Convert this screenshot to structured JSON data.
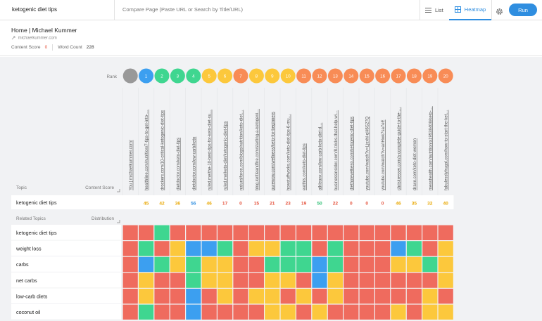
{
  "toolbar": {
    "query": "ketogenic diet tips",
    "compare_placeholder": "Compare Page (Paste URL or Search by Title/URL)",
    "list_label": "List",
    "heatmap_label": "Heatmap",
    "run_label": "Run"
  },
  "page_info": {
    "title": "Home | Michael Kummer",
    "url": "michaelkummer.com",
    "content_score_label": "Content Score",
    "content_score_value": "0",
    "word_count_label": "Word Count",
    "word_count_value": "228"
  },
  "grid": {
    "rank_label": "Rank",
    "topic_header": "Topic",
    "content_score_header": "Content Score",
    "main_topic": "ketogenic diet tips",
    "related_header": "Related Topics",
    "distribution_header": "Distribution",
    "colors": {
      "red": "#ef6b5e",
      "green": "#3fd690",
      "yellow": "#fcc83c",
      "blue": "#3c9ff0",
      "grey": "#999999"
    },
    "columns": [
      {
        "rank": "",
        "rank_color": "grey",
        "url": "You | michaelkummer.com/",
        "score": "",
        "score_color": ""
      },
      {
        "rank": "1",
        "rank_color": "blue",
        "url": "healthline.com/nutrition/7-tips-to-get-into-…",
        "score": "45",
        "score_color": "yellow"
      },
      {
        "rank": "2",
        "rank_color": "green",
        "url": "drockers.com/10-critical-ketogenic-diet-tips",
        "score": "42",
        "score_color": "yellow"
      },
      {
        "rank": "3",
        "rank_color": "green",
        "url": "dietdoctor.com/keto-diet-tips",
        "score": "36",
        "score_color": "yellow"
      },
      {
        "rank": "4",
        "rank_color": "green",
        "url": "dietdoctor.com/low-carb/keto",
        "score": "56",
        "score_color": "blue"
      },
      {
        "rank": "5",
        "rank_color": "yellow",
        "url": "ruled.me/the-10-best-tips-for-keto-diet-su…",
        "score": "46",
        "score_color": "yellow"
      },
      {
        "rank": "6",
        "rank_color": "yellow",
        "url": "ruled.me/keto-diet/ketogenic-diet-tips",
        "score": "17",
        "score_color": "red"
      },
      {
        "rank": "7",
        "rank_color": "orange",
        "url": "naturalforce.com/blogs/nutrition/keto-diet…",
        "score": "0",
        "score_color": "red"
      },
      {
        "rank": "8",
        "rank_color": "yellow",
        "url": "blog.kettleandfire.com/starting-a-ketogeni…",
        "score": "15",
        "score_color": "red"
      },
      {
        "rank": "9",
        "rank_color": "yellow",
        "url": "purewow.com/wellness/keto-for-beginners",
        "score": "21",
        "score_color": "red"
      },
      {
        "rank": "10",
        "rank_color": "yellow",
        "url": "howstuffworks.com/keto-diet-tips-6-mu…",
        "score": "23",
        "score_color": "red"
      },
      {
        "rank": "11",
        "rank_color": "orange",
        "url": "eatthis.com/keto-diet-tips",
        "score": "19",
        "score_color": "red"
      },
      {
        "rank": "12",
        "rank_color": "orange",
        "url": "athleanx.com/low-carb-keto-diet-d…",
        "score": "50",
        "score_color": "green"
      },
      {
        "rank": "13",
        "rank_color": "orange",
        "url": "businessinsider.com/8-tricks-that-help-wi…",
        "score": "22",
        "score_color": "red"
      },
      {
        "rank": "14",
        "rank_color": "orange",
        "url": "diethotevelkeso.com/ketogenic-diet-tips",
        "score": "0",
        "score_color": "red"
      },
      {
        "rank": "15",
        "rank_color": "orange",
        "url": "youtube.com/watch?v=Ljsxhl-qH6S2?Q",
        "score": "0",
        "score_color": "red"
      },
      {
        "rank": "16",
        "rank_color": "orange",
        "url": "youtube.com/watch?v=a/rHwk7sa7eE",
        "score": "0",
        "score_color": "red"
      },
      {
        "rank": "17",
        "rank_color": "orange",
        "url": "chriskresser.com/a-complete-guide-to-the-…",
        "score": "46",
        "score_color": "yellow"
      },
      {
        "rank": "18",
        "rank_color": "orange",
        "url": "draxe.com/keto-diet-women",
        "score": "35",
        "score_color": "yellow"
      },
      {
        "rank": "19",
        "rank_color": "orange",
        "url": "menshealth.com/nutrition/a19538408/keto-…",
        "score": "32",
        "score_color": "yellow"
      },
      {
        "rank": "20",
        "rank_color": "orange",
        "url": "fabulesslyfrugal.com/how-to-start-the-ket…",
        "score": "40",
        "score_color": "yellow"
      }
    ],
    "rows": [
      {
        "topic": "ketogenic diet tips",
        "cells": [
          "R",
          "R",
          "G",
          "R",
          "R",
          "R",
          "R",
          "R",
          "R",
          "R",
          "R",
          "R",
          "R",
          "R",
          "R",
          "R",
          "R",
          "R",
          "R",
          "R",
          "R"
        ]
      },
      {
        "topic": "weight loss",
        "cells": [
          "R",
          "G",
          "R",
          "Y",
          "B",
          "B",
          "G",
          "R",
          "Y",
          "Y",
          "G",
          "G",
          "R",
          "G",
          "R",
          "R",
          "R",
          "B",
          "G",
          "R",
          "Y"
        ]
      },
      {
        "topic": "carbs",
        "cells": [
          "R",
          "B",
          "G",
          "Y",
          "G",
          "Y",
          "Y",
          "R",
          "R",
          "G",
          "G",
          "G",
          "B",
          "G",
          "R",
          "R",
          "R",
          "Y",
          "Y",
          "G",
          "Y"
        ]
      },
      {
        "topic": "net carbs",
        "cells": [
          "R",
          "Y",
          "R",
          "R",
          "G",
          "Y",
          "Y",
          "R",
          "R",
          "Y",
          "Y",
          "R",
          "B",
          "Y",
          "R",
          "R",
          "R",
          "R",
          "R",
          "R",
          "Y"
        ]
      },
      {
        "topic": "low-carb diets",
        "cells": [
          "R",
          "Y",
          "R",
          "R",
          "B",
          "R",
          "Y",
          "R",
          "Y",
          "Y",
          "R",
          "Y",
          "R",
          "Y",
          "R",
          "R",
          "R",
          "R",
          "R",
          "Y",
          "R"
        ]
      },
      {
        "topic": "coconut oil",
        "cells": [
          "R",
          "G",
          "R",
          "R",
          "B",
          "R",
          "R",
          "R",
          "R",
          "Y",
          "Y",
          "R",
          "Y",
          "R",
          "R",
          "R",
          "R",
          "Y",
          "R",
          "Y",
          "Y"
        ]
      }
    ]
  }
}
